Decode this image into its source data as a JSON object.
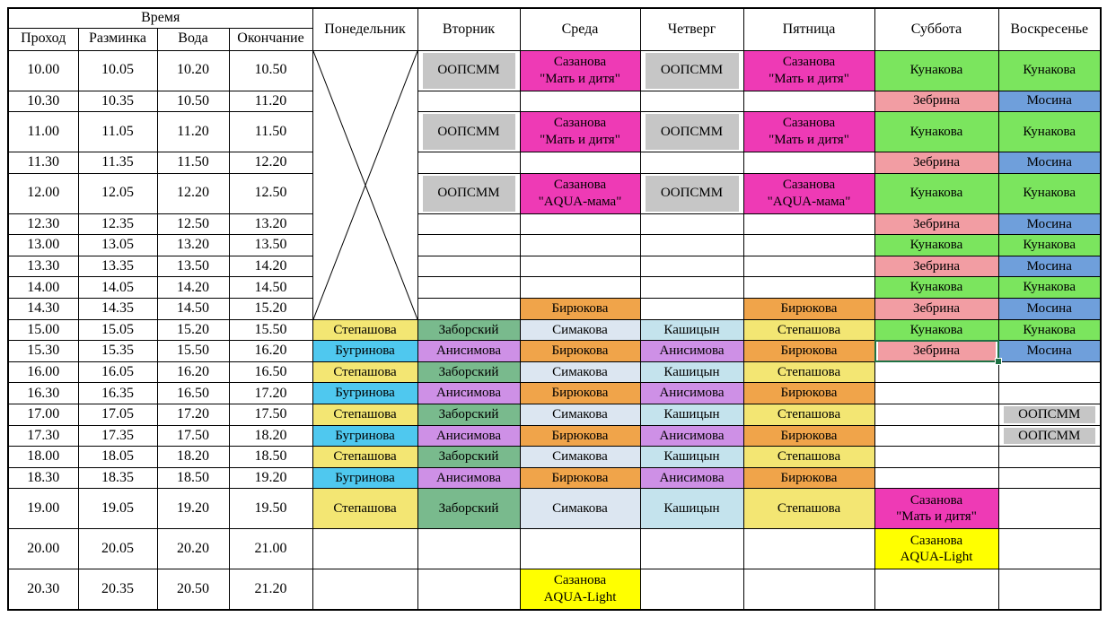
{
  "table": {
    "time_header": "Время",
    "time_columns": [
      "Проход",
      "Разминка",
      "Вода",
      "Окончание"
    ],
    "day_columns": [
      "Понедельник",
      "Вторник",
      "Среда",
      "Четверг",
      "Пятница",
      "Суббота",
      "Воскресенье"
    ],
    "palette": {
      "oopsmm": "#C6C6C6",
      "sazanova": "#EE3AB5",
      "kunakova": "#7BE55E",
      "zebrina": "#F29DA3",
      "mosina": "#6F9FDB",
      "stepashova": "#F3E673",
      "bugrinova": "#4FC8EF",
      "zaborsky": "#79BA8D",
      "simakova": "#DCE6F1",
      "kashitsyn": "#C4E3ED",
      "anisimova": "#CE90E6",
      "biryukova": "#F0A44A",
      "aqualight": "#FFFF00"
    },
    "selection_color": "#1F7244",
    "monday_cross": {
      "rows": 10
    },
    "rows": [
      {
        "times": [
          "10.00",
          "10.05",
          "10.20",
          "10.50"
        ],
        "tall": true,
        "cells": {
          "tue": {
            "lines": [
              "ООПСММ"
            ],
            "fill": "oopsmm",
            "inset": true
          },
          "wed": {
            "lines": [
              "Сазанова",
              "\"Мать и дитя\""
            ],
            "fill": "sazanova"
          },
          "thu": {
            "lines": [
              "ООПСММ"
            ],
            "fill": "oopsmm",
            "inset": true
          },
          "fri": {
            "lines": [
              "Сазанова",
              "\"Мать и дитя\""
            ],
            "fill": "sazanova"
          },
          "sat": {
            "lines": [
              "Кунакова"
            ],
            "fill": "kunakova"
          },
          "sun": {
            "lines": [
              "Кунакова"
            ],
            "fill": "kunakova"
          }
        }
      },
      {
        "times": [
          "10.30",
          "10.35",
          "10.50",
          "11.20"
        ],
        "tall": false,
        "cells": {
          "sat": {
            "lines": [
              "Зебрина"
            ],
            "fill": "zebrina"
          },
          "sun": {
            "lines": [
              "Мосина"
            ],
            "fill": "mosina"
          }
        }
      },
      {
        "times": [
          "11.00",
          "11.05",
          "11.20",
          "11.50"
        ],
        "tall": true,
        "cells": {
          "tue": {
            "lines": [
              "ООПСММ"
            ],
            "fill": "oopsmm",
            "inset": true
          },
          "wed": {
            "lines": [
              "Сазанова",
              "\"Мать и дитя\""
            ],
            "fill": "sazanova"
          },
          "thu": {
            "lines": [
              "ООПСММ"
            ],
            "fill": "oopsmm",
            "inset": true
          },
          "fri": {
            "lines": [
              "Сазанова",
              "\"Мать и дитя\""
            ],
            "fill": "sazanova"
          },
          "sat": {
            "lines": [
              "Кунакова"
            ],
            "fill": "kunakova"
          },
          "sun": {
            "lines": [
              "Кунакова"
            ],
            "fill": "kunakova"
          }
        }
      },
      {
        "times": [
          "11.30",
          "11.35",
          "11.50",
          "12.20"
        ],
        "tall": false,
        "cells": {
          "sat": {
            "lines": [
              "Зебрина"
            ],
            "fill": "zebrina"
          },
          "sun": {
            "lines": [
              "Мосина"
            ],
            "fill": "mosina"
          }
        }
      },
      {
        "times": [
          "12.00",
          "12.05",
          "12.20",
          "12.50"
        ],
        "tall": true,
        "cells": {
          "tue": {
            "lines": [
              "ООПСММ"
            ],
            "fill": "oopsmm",
            "inset": true
          },
          "wed": {
            "lines": [
              "Сазанова",
              "\"AQUA-мама\""
            ],
            "fill": "sazanova"
          },
          "thu": {
            "lines": [
              "ООПСММ"
            ],
            "fill": "oopsmm",
            "inset": true
          },
          "fri": {
            "lines": [
              "Сазанова",
              "\"AQUA-мама\""
            ],
            "fill": "sazanova"
          },
          "sat": {
            "lines": [
              "Кунакова"
            ],
            "fill": "kunakova"
          },
          "sun": {
            "lines": [
              "Кунакова"
            ],
            "fill": "kunakova"
          }
        }
      },
      {
        "times": [
          "12.30",
          "12.35",
          "12.50",
          "13.20"
        ],
        "tall": false,
        "cells": {
          "sat": {
            "lines": [
              "Зебрина"
            ],
            "fill": "zebrina"
          },
          "sun": {
            "lines": [
              "Мосина"
            ],
            "fill": "mosina"
          }
        }
      },
      {
        "times": [
          "13.00",
          "13.05",
          "13.20",
          "13.50"
        ],
        "tall": false,
        "cells": {
          "sat": {
            "lines": [
              "Кунакова"
            ],
            "fill": "kunakova"
          },
          "sun": {
            "lines": [
              "Кунакова"
            ],
            "fill": "kunakova"
          }
        }
      },
      {
        "times": [
          "13.30",
          "13.35",
          "13.50",
          "14.20"
        ],
        "tall": false,
        "cells": {
          "sat": {
            "lines": [
              "Зебрина"
            ],
            "fill": "zebrina"
          },
          "sun": {
            "lines": [
              "Мосина"
            ],
            "fill": "mosina"
          }
        }
      },
      {
        "times": [
          "14.00",
          "14.05",
          "14.20",
          "14.50"
        ],
        "tall": false,
        "cells": {
          "sat": {
            "lines": [
              "Кунакова"
            ],
            "fill": "kunakova"
          },
          "sun": {
            "lines": [
              "Кунакова"
            ],
            "fill": "kunakova"
          }
        }
      },
      {
        "times": [
          "14.30",
          "14.35",
          "14.50",
          "15.20"
        ],
        "tall": false,
        "cells": {
          "wed": {
            "lines": [
              "Бирюкова"
            ],
            "fill": "biryukova"
          },
          "fri": {
            "lines": [
              "Бирюкова"
            ],
            "fill": "biryukova"
          },
          "sat": {
            "lines": [
              "Зебрина"
            ],
            "fill": "zebrina"
          },
          "sun": {
            "lines": [
              "Мосина"
            ],
            "fill": "mosina"
          }
        }
      },
      {
        "times": [
          "15.00",
          "15.05",
          "15.20",
          "15.50"
        ],
        "tall": false,
        "cells": {
          "mon": {
            "lines": [
              "Степашова"
            ],
            "fill": "stepashova"
          },
          "tue": {
            "lines": [
              "Заборский"
            ],
            "fill": "zaborsky"
          },
          "wed": {
            "lines": [
              "Симакова"
            ],
            "fill": "simakova"
          },
          "thu": {
            "lines": [
              "Кашицын"
            ],
            "fill": "kashitsyn"
          },
          "fri": {
            "lines": [
              "Степашова"
            ],
            "fill": "stepashova"
          },
          "sat": {
            "lines": [
              "Кунакова"
            ],
            "fill": "kunakova"
          },
          "sun": {
            "lines": [
              "Кунакова"
            ],
            "fill": "kunakova"
          }
        }
      },
      {
        "times": [
          "15.30",
          "15.35",
          "15.50",
          "16.20"
        ],
        "tall": false,
        "cells": {
          "mon": {
            "lines": [
              "Бугринова"
            ],
            "fill": "bugrinova"
          },
          "tue": {
            "lines": [
              "Анисимова"
            ],
            "fill": "anisimova"
          },
          "wed": {
            "lines": [
              "Бирюкова"
            ],
            "fill": "biryukova"
          },
          "thu": {
            "lines": [
              "Анисимова"
            ],
            "fill": "anisimova"
          },
          "fri": {
            "lines": [
              "Бирюкова"
            ],
            "fill": "biryukova"
          },
          "sat": {
            "lines": [
              "Зебрина"
            ],
            "fill": "zebrina",
            "selected": true
          },
          "sun": {
            "lines": [
              "Мосина"
            ],
            "fill": "mosina"
          }
        }
      },
      {
        "times": [
          "16.00",
          "16.05",
          "16.20",
          "16.50"
        ],
        "tall": false,
        "cells": {
          "mon": {
            "lines": [
              "Степашова"
            ],
            "fill": "stepashova"
          },
          "tue": {
            "lines": [
              "Заборский"
            ],
            "fill": "zaborsky"
          },
          "wed": {
            "lines": [
              "Симакова"
            ],
            "fill": "simakova"
          },
          "thu": {
            "lines": [
              "Кашицын"
            ],
            "fill": "kashitsyn"
          },
          "fri": {
            "lines": [
              "Степашова"
            ],
            "fill": "stepashova"
          }
        }
      },
      {
        "times": [
          "16.30",
          "16.35",
          "16.50",
          "17.20"
        ],
        "tall": false,
        "cells": {
          "mon": {
            "lines": [
              "Бугринова"
            ],
            "fill": "bugrinova"
          },
          "tue": {
            "lines": [
              "Анисимова"
            ],
            "fill": "anisimova"
          },
          "wed": {
            "lines": [
              "Бирюкова"
            ],
            "fill": "biryukova"
          },
          "thu": {
            "lines": [
              "Анисимова"
            ],
            "fill": "anisimova"
          },
          "fri": {
            "lines": [
              "Бирюкова"
            ],
            "fill": "biryukova"
          }
        }
      },
      {
        "times": [
          "17.00",
          "17.05",
          "17.20",
          "17.50"
        ],
        "tall": false,
        "cells": {
          "mon": {
            "lines": [
              "Степашова"
            ],
            "fill": "stepashova"
          },
          "tue": {
            "lines": [
              "Заборский"
            ],
            "fill": "zaborsky"
          },
          "wed": {
            "lines": [
              "Симакова"
            ],
            "fill": "simakova"
          },
          "thu": {
            "lines": [
              "Кашицын"
            ],
            "fill": "kashitsyn"
          },
          "fri": {
            "lines": [
              "Степашова"
            ],
            "fill": "stepashova"
          },
          "sun": {
            "lines": [
              "ООПСММ"
            ],
            "fill": "oopsmm",
            "inset": true
          }
        }
      },
      {
        "times": [
          "17.30",
          "17.35",
          "17.50",
          "18.20"
        ],
        "tall": false,
        "cells": {
          "mon": {
            "lines": [
              "Бугринова"
            ],
            "fill": "bugrinova"
          },
          "tue": {
            "lines": [
              "Анисимова"
            ],
            "fill": "anisimova"
          },
          "wed": {
            "lines": [
              "Бирюкова"
            ],
            "fill": "biryukova"
          },
          "thu": {
            "lines": [
              "Анисимова"
            ],
            "fill": "anisimova"
          },
          "fri": {
            "lines": [
              "Бирюкова"
            ],
            "fill": "biryukova"
          },
          "sun": {
            "lines": [
              "ООПСММ"
            ],
            "fill": "oopsmm",
            "inset": true
          }
        }
      },
      {
        "times": [
          "18.00",
          "18.05",
          "18.20",
          "18.50"
        ],
        "tall": false,
        "cells": {
          "mon": {
            "lines": [
              "Степашова"
            ],
            "fill": "stepashova"
          },
          "tue": {
            "lines": [
              "Заборский"
            ],
            "fill": "zaborsky"
          },
          "wed": {
            "lines": [
              "Симакова"
            ],
            "fill": "simakova"
          },
          "thu": {
            "lines": [
              "Кашицын"
            ],
            "fill": "kashitsyn"
          },
          "fri": {
            "lines": [
              "Степашова"
            ],
            "fill": "stepashova"
          }
        }
      },
      {
        "times": [
          "18.30",
          "18.35",
          "18.50",
          "19.20"
        ],
        "tall": false,
        "cells": {
          "mon": {
            "lines": [
              "Бугринова"
            ],
            "fill": "bugrinova"
          },
          "tue": {
            "lines": [
              "Анисимова"
            ],
            "fill": "anisimova"
          },
          "wed": {
            "lines": [
              "Бирюкова"
            ],
            "fill": "biryukova"
          },
          "thu": {
            "lines": [
              "Анисимова"
            ],
            "fill": "anisimova"
          },
          "fri": {
            "lines": [
              "Бирюкова"
            ],
            "fill": "biryukova"
          }
        }
      },
      {
        "times": [
          "19.00",
          "19.05",
          "19.20",
          "19.50"
        ],
        "tall": true,
        "cells": {
          "mon": {
            "lines": [
              "Степашова"
            ],
            "fill": "stepashova"
          },
          "tue": {
            "lines": [
              "Заборский"
            ],
            "fill": "zaborsky"
          },
          "wed": {
            "lines": [
              "Симакова"
            ],
            "fill": "simakova"
          },
          "thu": {
            "lines": [
              "Кашицын"
            ],
            "fill": "kashitsyn"
          },
          "fri": {
            "lines": [
              "Степашова"
            ],
            "fill": "stepashova"
          },
          "sat": {
            "lines": [
              "Сазанова",
              "\"Мать и дитя\""
            ],
            "fill": "sazanova"
          }
        }
      },
      {
        "times": [
          "20.00",
          "20.05",
          "20.20",
          "21.00"
        ],
        "tall": true,
        "cells": {
          "sat": {
            "lines": [
              "Сазанова",
              "AQUA-Light"
            ],
            "fill": "aqualight"
          }
        }
      },
      {
        "times": [
          "20.30",
          "20.35",
          "20.50",
          "21.20"
        ],
        "tall": true,
        "cells": {
          "wed": {
            "lines": [
              "Сазанова",
              "AQUA-Light"
            ],
            "fill": "aqualight"
          }
        }
      }
    ]
  }
}
